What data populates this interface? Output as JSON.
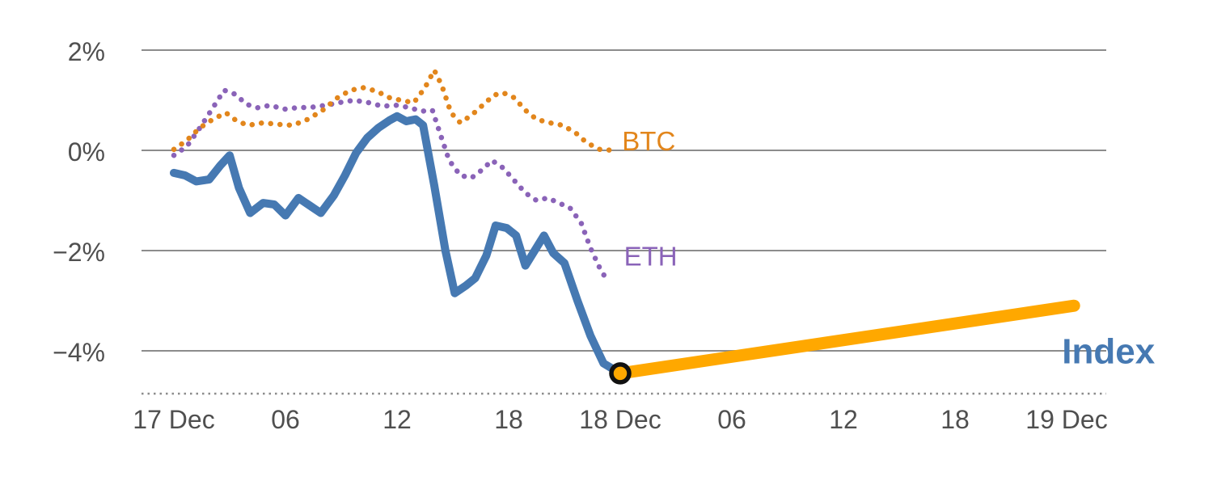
{
  "colors": {
    "background": "#FFFFFF",
    "grid": "#8C8C8C",
    "axis_text": "#4F4F4F",
    "btc": "#E2861C",
    "eth": "#8A63B8",
    "index": "#4679B2",
    "projection": "#FFA800",
    "marker_fill": "#FFA800",
    "marker_stroke": "#111111"
  },
  "chart_data": {
    "type": "line",
    "title": "",
    "xlabel": "",
    "ylabel": "",
    "grid": true,
    "x_axis": {
      "unit": "hours since 17 Dec 00:00",
      "min": 0,
      "max": 48,
      "ticks": [
        {
          "value": 0,
          "label": "17 Dec"
        },
        {
          "value": 6,
          "label": "06"
        },
        {
          "value": 12,
          "label": "12"
        },
        {
          "value": 18,
          "label": "18"
        },
        {
          "value": 24,
          "label": "18 Dec"
        },
        {
          "value": 30,
          "label": "06"
        },
        {
          "value": 36,
          "label": "12"
        },
        {
          "value": 42,
          "label": "18"
        },
        {
          "value": 48,
          "label": "19 Dec"
        }
      ]
    },
    "y_axis": {
      "unit": "%",
      "min": -4.85,
      "max": 2.3,
      "ticks": [
        {
          "value": 2,
          "label": "2%"
        },
        {
          "value": 0,
          "label": "0%"
        },
        {
          "value": -2,
          "label": "−2%"
        },
        {
          "value": -4,
          "label": "−4%"
        }
      ]
    },
    "series": [
      {
        "name": "ETH",
        "color": "#8A63B8",
        "style": "dotted",
        "width": 6.5,
        "label": {
          "text": "ETH",
          "x": 24.2,
          "y": -2.3,
          "size": 33,
          "weight": "normal"
        },
        "points": [
          [
            0,
            -0.1
          ],
          [
            0.7,
            0.08
          ],
          [
            1.4,
            0.45
          ],
          [
            2.1,
            0.85
          ],
          [
            2.7,
            1.2
          ],
          [
            3.3,
            1.12
          ],
          [
            3.9,
            0.92
          ],
          [
            4.5,
            0.85
          ],
          [
            5.2,
            0.9
          ],
          [
            5.9,
            0.82
          ],
          [
            6.6,
            0.85
          ],
          [
            7.4,
            0.86
          ],
          [
            8.2,
            0.9
          ],
          [
            9.0,
            0.96
          ],
          [
            9.7,
            1.0
          ],
          [
            10.5,
            0.95
          ],
          [
            11.2,
            0.88
          ],
          [
            12.0,
            0.9
          ],
          [
            12.7,
            0.85
          ],
          [
            13.3,
            0.78
          ],
          [
            13.9,
            0.8
          ],
          [
            14.3,
            0.35
          ],
          [
            14.8,
            -0.2
          ],
          [
            15.4,
            -0.5
          ],
          [
            16.0,
            -0.55
          ],
          [
            16.6,
            -0.38
          ],
          [
            17.1,
            -0.2
          ],
          [
            17.7,
            -0.35
          ],
          [
            18.3,
            -0.6
          ],
          [
            18.9,
            -0.85
          ],
          [
            19.5,
            -1.0
          ],
          [
            20.1,
            -0.95
          ],
          [
            20.7,
            -1.05
          ],
          [
            21.3,
            -1.15
          ],
          [
            21.9,
            -1.45
          ],
          [
            22.4,
            -1.95
          ],
          [
            22.9,
            -2.35
          ],
          [
            23.3,
            -2.6
          ]
        ]
      },
      {
        "name": "BTC",
        "color": "#E2861C",
        "style": "dotted",
        "width": 6.5,
        "label": {
          "text": "BTC",
          "x": 24.1,
          "y": 0.0,
          "size": 33,
          "weight": "normal"
        },
        "points": [
          [
            0,
            0.02
          ],
          [
            0.7,
            0.2
          ],
          [
            1.4,
            0.45
          ],
          [
            2.1,
            0.62
          ],
          [
            2.8,
            0.75
          ],
          [
            3.4,
            0.58
          ],
          [
            4.0,
            0.5
          ],
          [
            4.8,
            0.55
          ],
          [
            5.6,
            0.52
          ],
          [
            6.4,
            0.5
          ],
          [
            7.2,
            0.62
          ],
          [
            8.0,
            0.8
          ],
          [
            8.8,
            1.05
          ],
          [
            9.5,
            1.2
          ],
          [
            10.2,
            1.25
          ],
          [
            10.9,
            1.18
          ],
          [
            11.6,
            1.05
          ],
          [
            12.2,
            1.0
          ],
          [
            12.9,
            0.95
          ],
          [
            13.5,
            1.25
          ],
          [
            14.0,
            1.6
          ],
          [
            14.4,
            1.3
          ],
          [
            14.9,
            0.75
          ],
          [
            15.4,
            0.55
          ],
          [
            16.0,
            0.7
          ],
          [
            16.6,
            0.9
          ],
          [
            17.2,
            1.1
          ],
          [
            17.7,
            1.15
          ],
          [
            18.3,
            1.05
          ],
          [
            18.9,
            0.8
          ],
          [
            19.5,
            0.62
          ],
          [
            20.2,
            0.55
          ],
          [
            20.9,
            0.5
          ],
          [
            21.6,
            0.35
          ],
          [
            22.2,
            0.15
          ],
          [
            22.9,
            0.02
          ],
          [
            23.6,
            0.0
          ]
        ]
      },
      {
        "name": "Index",
        "color": "#4679B2",
        "style": "solid",
        "width": 10,
        "points": [
          [
            0,
            -0.45
          ],
          [
            0.6,
            -0.5
          ],
          [
            1.2,
            -0.62
          ],
          [
            1.9,
            -0.58
          ],
          [
            2.5,
            -0.3
          ],
          [
            3.0,
            -0.1
          ],
          [
            3.5,
            -0.75
          ],
          [
            4.1,
            -1.25
          ],
          [
            4.8,
            -1.05
          ],
          [
            5.4,
            -1.08
          ],
          [
            6.0,
            -1.3
          ],
          [
            6.7,
            -0.95
          ],
          [
            7.3,
            -1.1
          ],
          [
            7.9,
            -1.25
          ],
          [
            8.6,
            -0.9
          ],
          [
            9.2,
            -0.5
          ],
          [
            9.8,
            -0.05
          ],
          [
            10.4,
            0.25
          ],
          [
            11.0,
            0.45
          ],
          [
            11.6,
            0.6
          ],
          [
            12.0,
            0.68
          ],
          [
            12.5,
            0.58
          ],
          [
            13.0,
            0.62
          ],
          [
            13.4,
            0.5
          ],
          [
            14.0,
            -0.7
          ],
          [
            14.6,
            -2.0
          ],
          [
            15.1,
            -2.85
          ],
          [
            15.7,
            -2.7
          ],
          [
            16.2,
            -2.55
          ],
          [
            16.8,
            -2.1
          ],
          [
            17.3,
            -1.5
          ],
          [
            17.9,
            -1.55
          ],
          [
            18.4,
            -1.7
          ],
          [
            18.9,
            -2.3
          ],
          [
            19.4,
            -2.0
          ],
          [
            19.9,
            -1.7
          ],
          [
            20.4,
            -2.05
          ],
          [
            21.0,
            -2.25
          ],
          [
            21.7,
            -3.0
          ],
          [
            22.4,
            -3.7
          ],
          [
            23.1,
            -4.25
          ],
          [
            24.0,
            -4.45
          ]
        ]
      },
      {
        "name": "Index-projection",
        "color": "#FFA800",
        "style": "solid",
        "width": 15,
        "label": {
          "text": "Index",
          "x": 47.75,
          "y": -4.25,
          "size": 44,
          "weight": "bold",
          "label_color": "#4679B2"
        },
        "points": [
          [
            24,
            -4.45
          ],
          [
            48.4,
            -3.1
          ]
        ]
      }
    ],
    "marker": {
      "x": 24,
      "y": -4.45,
      "radius": 11,
      "fill": "#FFA800",
      "stroke": "#111111",
      "stroke_width": 5.5
    }
  }
}
